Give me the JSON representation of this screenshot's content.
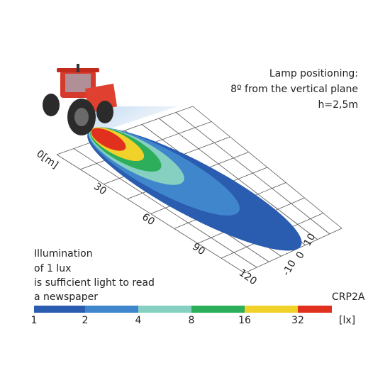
{
  "positioning": {
    "lines": [
      "Lamp positioning:",
      "8º from the vertical plane",
      "h=2,5m"
    ]
  },
  "distance_labels": [
    "0[m]",
    "30",
    "60",
    "90",
    "120"
  ],
  "lateral_labels": [
    "10",
    "0",
    "-10"
  ],
  "note": {
    "lines": [
      "Illumination",
      "of 1 lux",
      "is sufficient light to read",
      "a newspaper"
    ]
  },
  "model": "CRP2A",
  "scale": {
    "labels": [
      "1",
      "2",
      "4",
      "8",
      "16",
      "32"
    ],
    "unit": "[lx]"
  }
}
